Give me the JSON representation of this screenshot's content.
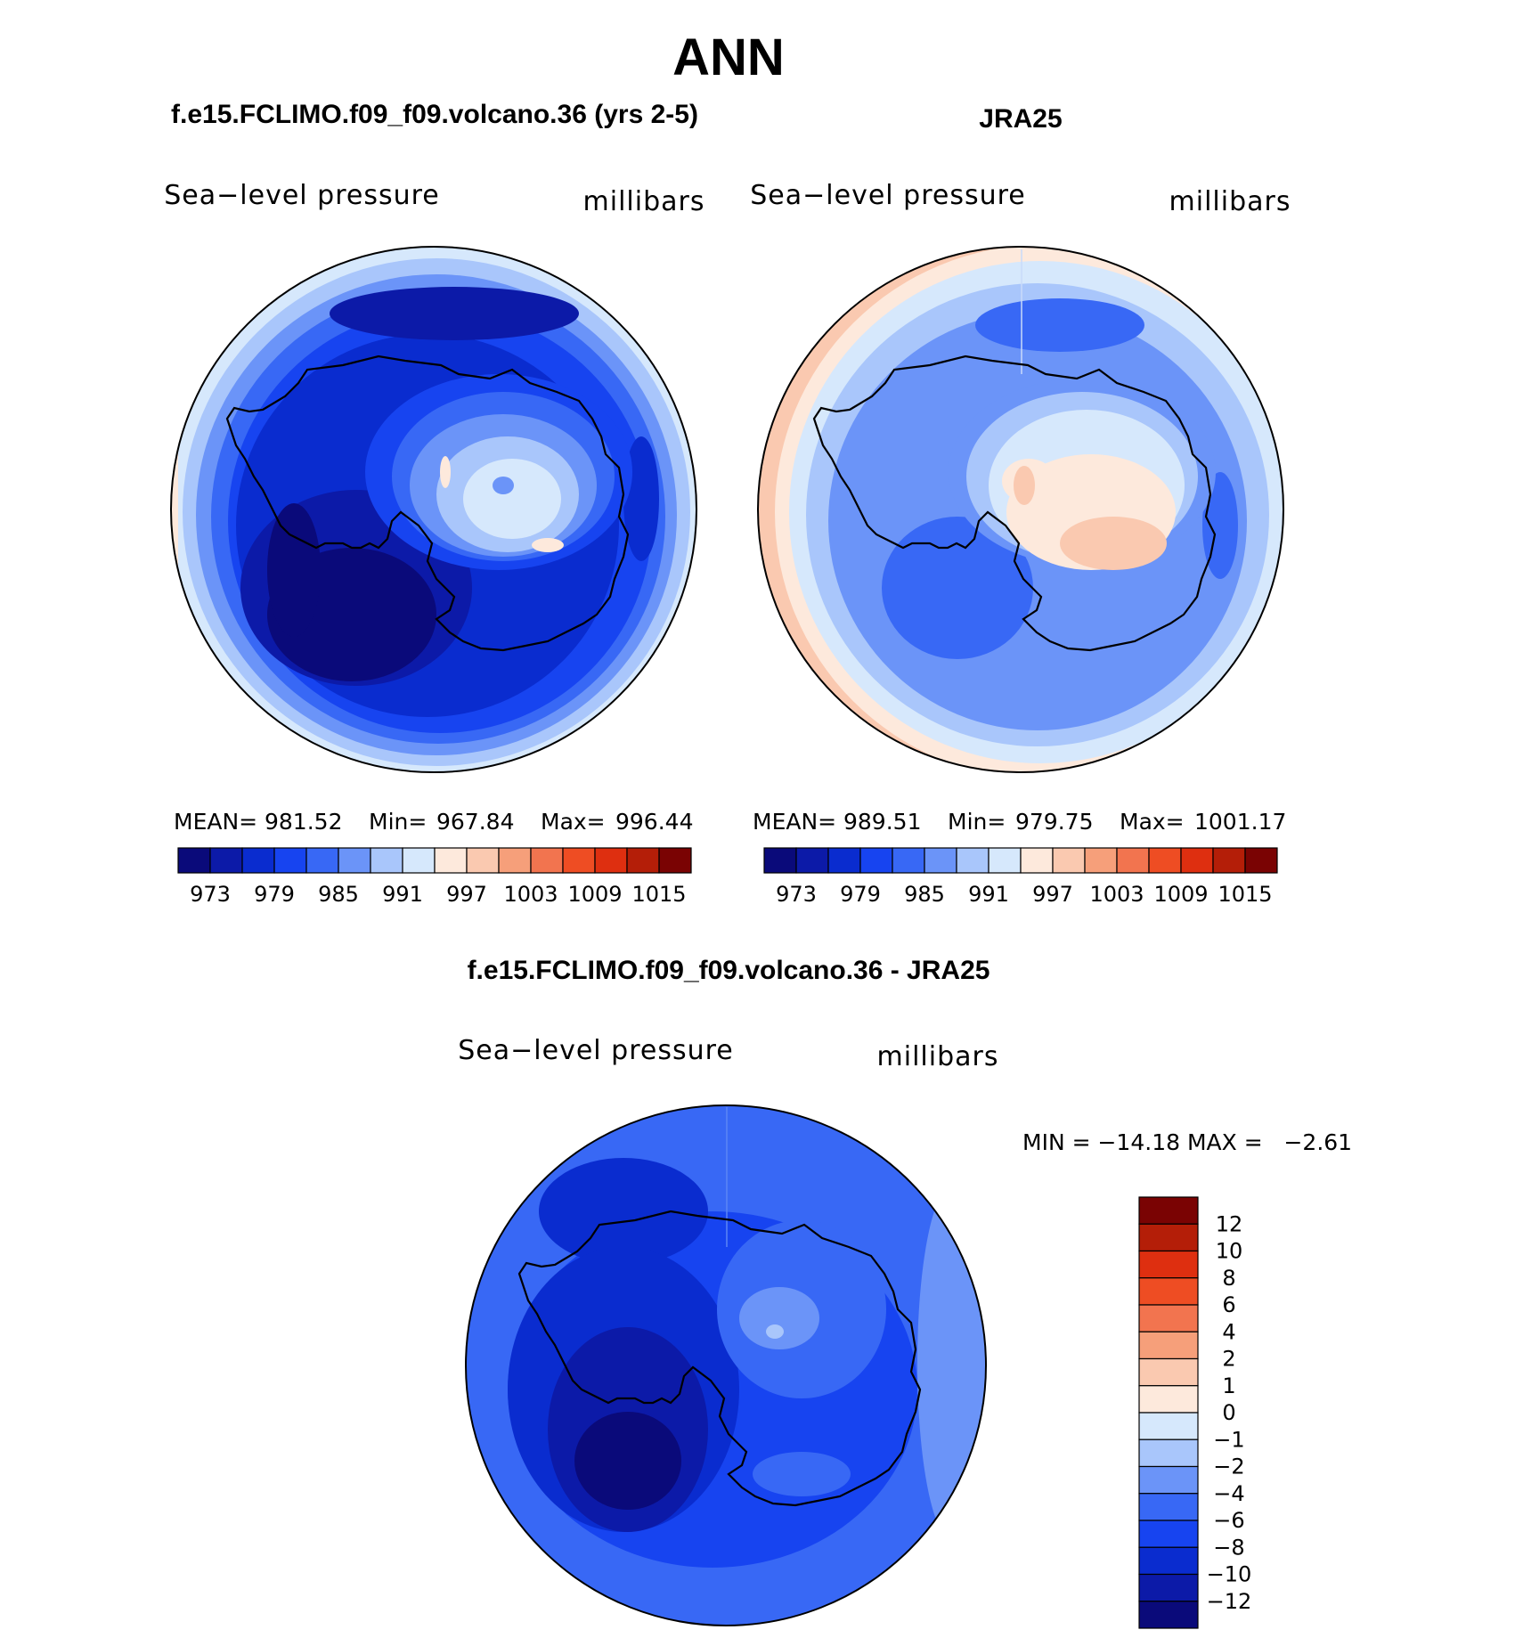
{
  "figure": {
    "season": "ANN",
    "diff_title": "f.e15.FCLIMO.f09_f09.volcano.36 - JRA25"
  },
  "palette": {
    "abs_colors": [
      "#0a0a7a",
      "#0c1aa8",
      "#0a2ccf",
      "#1744f0",
      "#3868f5",
      "#6b94f8",
      "#a9c6fb",
      "#d6e8fc",
      "#fde9dc",
      "#fac9b0",
      "#f69f7a",
      "#f2744f",
      "#ee4d23",
      "#de2f10",
      "#b41e08",
      "#7a0303"
    ],
    "diff_colors": [
      "#0a0a7a",
      "#0c1aa8",
      "#0a2ccf",
      "#1744f0",
      "#3868f5",
      "#6b94f8",
      "#a9c6fb",
      "#d6e8fc",
      "#fde9dc",
      "#fac9b0",
      "#f69f7a",
      "#f2744f",
      "#ee4d23",
      "#de2f10",
      "#b41e08",
      "#7a0303"
    ]
  },
  "chart_data": [
    {
      "type": "polar_contour_map",
      "title": "f.e15.FCLIMO.f09_f09.volcano.36 (yrs 2-5)",
      "field": "Sea−level pressure",
      "units": "millibars",
      "stats": {
        "mean_label": "MEAN=",
        "mean": "981.52",
        "min_label": "Min=",
        "min": "967.84",
        "max_label": "Max=",
        "max": "996.44"
      },
      "levels": [
        973,
        976,
        979,
        982,
        985,
        988,
        991,
        994,
        997,
        1000,
        1003,
        1006,
        1009,
        1012,
        1015
      ],
      "level_labels": [
        "973",
        "979",
        "985",
        "991",
        "997",
        "1003",
        "1009",
        "1015"
      ]
    },
    {
      "type": "polar_contour_map",
      "title": "JRA25",
      "field": "Sea−level pressure",
      "units": "millibars",
      "stats": {
        "mean_label": "MEAN=",
        "mean": "989.51",
        "min_label": "Min=",
        "min": "979.75",
        "max_label": "Max=",
        "max": "1001.17"
      },
      "levels": [
        973,
        976,
        979,
        982,
        985,
        988,
        991,
        994,
        997,
        1000,
        1003,
        1006,
        1009,
        1012,
        1015
      ],
      "level_labels": [
        "973",
        "979",
        "985",
        "991",
        "997",
        "1003",
        "1009",
        "1015"
      ]
    },
    {
      "type": "polar_contour_map",
      "title": "f.e15.FCLIMO.f09_f09.volcano.36 - JRA25",
      "field": "Sea−level pressure",
      "units": "millibars",
      "stats_text": "MIN = −14.18 MAX =   −2.61",
      "levels": [
        -12,
        -10,
        -8,
        -6,
        -4,
        -2,
        -1,
        0,
        1,
        2,
        4,
        6,
        8,
        10,
        12
      ],
      "level_labels": [
        "−12",
        "−10",
        "−8",
        "−6",
        "−4",
        "−2",
        "−1",
        "0",
        "1",
        "2",
        "4",
        "6",
        "8",
        "10",
        "12"
      ]
    }
  ]
}
